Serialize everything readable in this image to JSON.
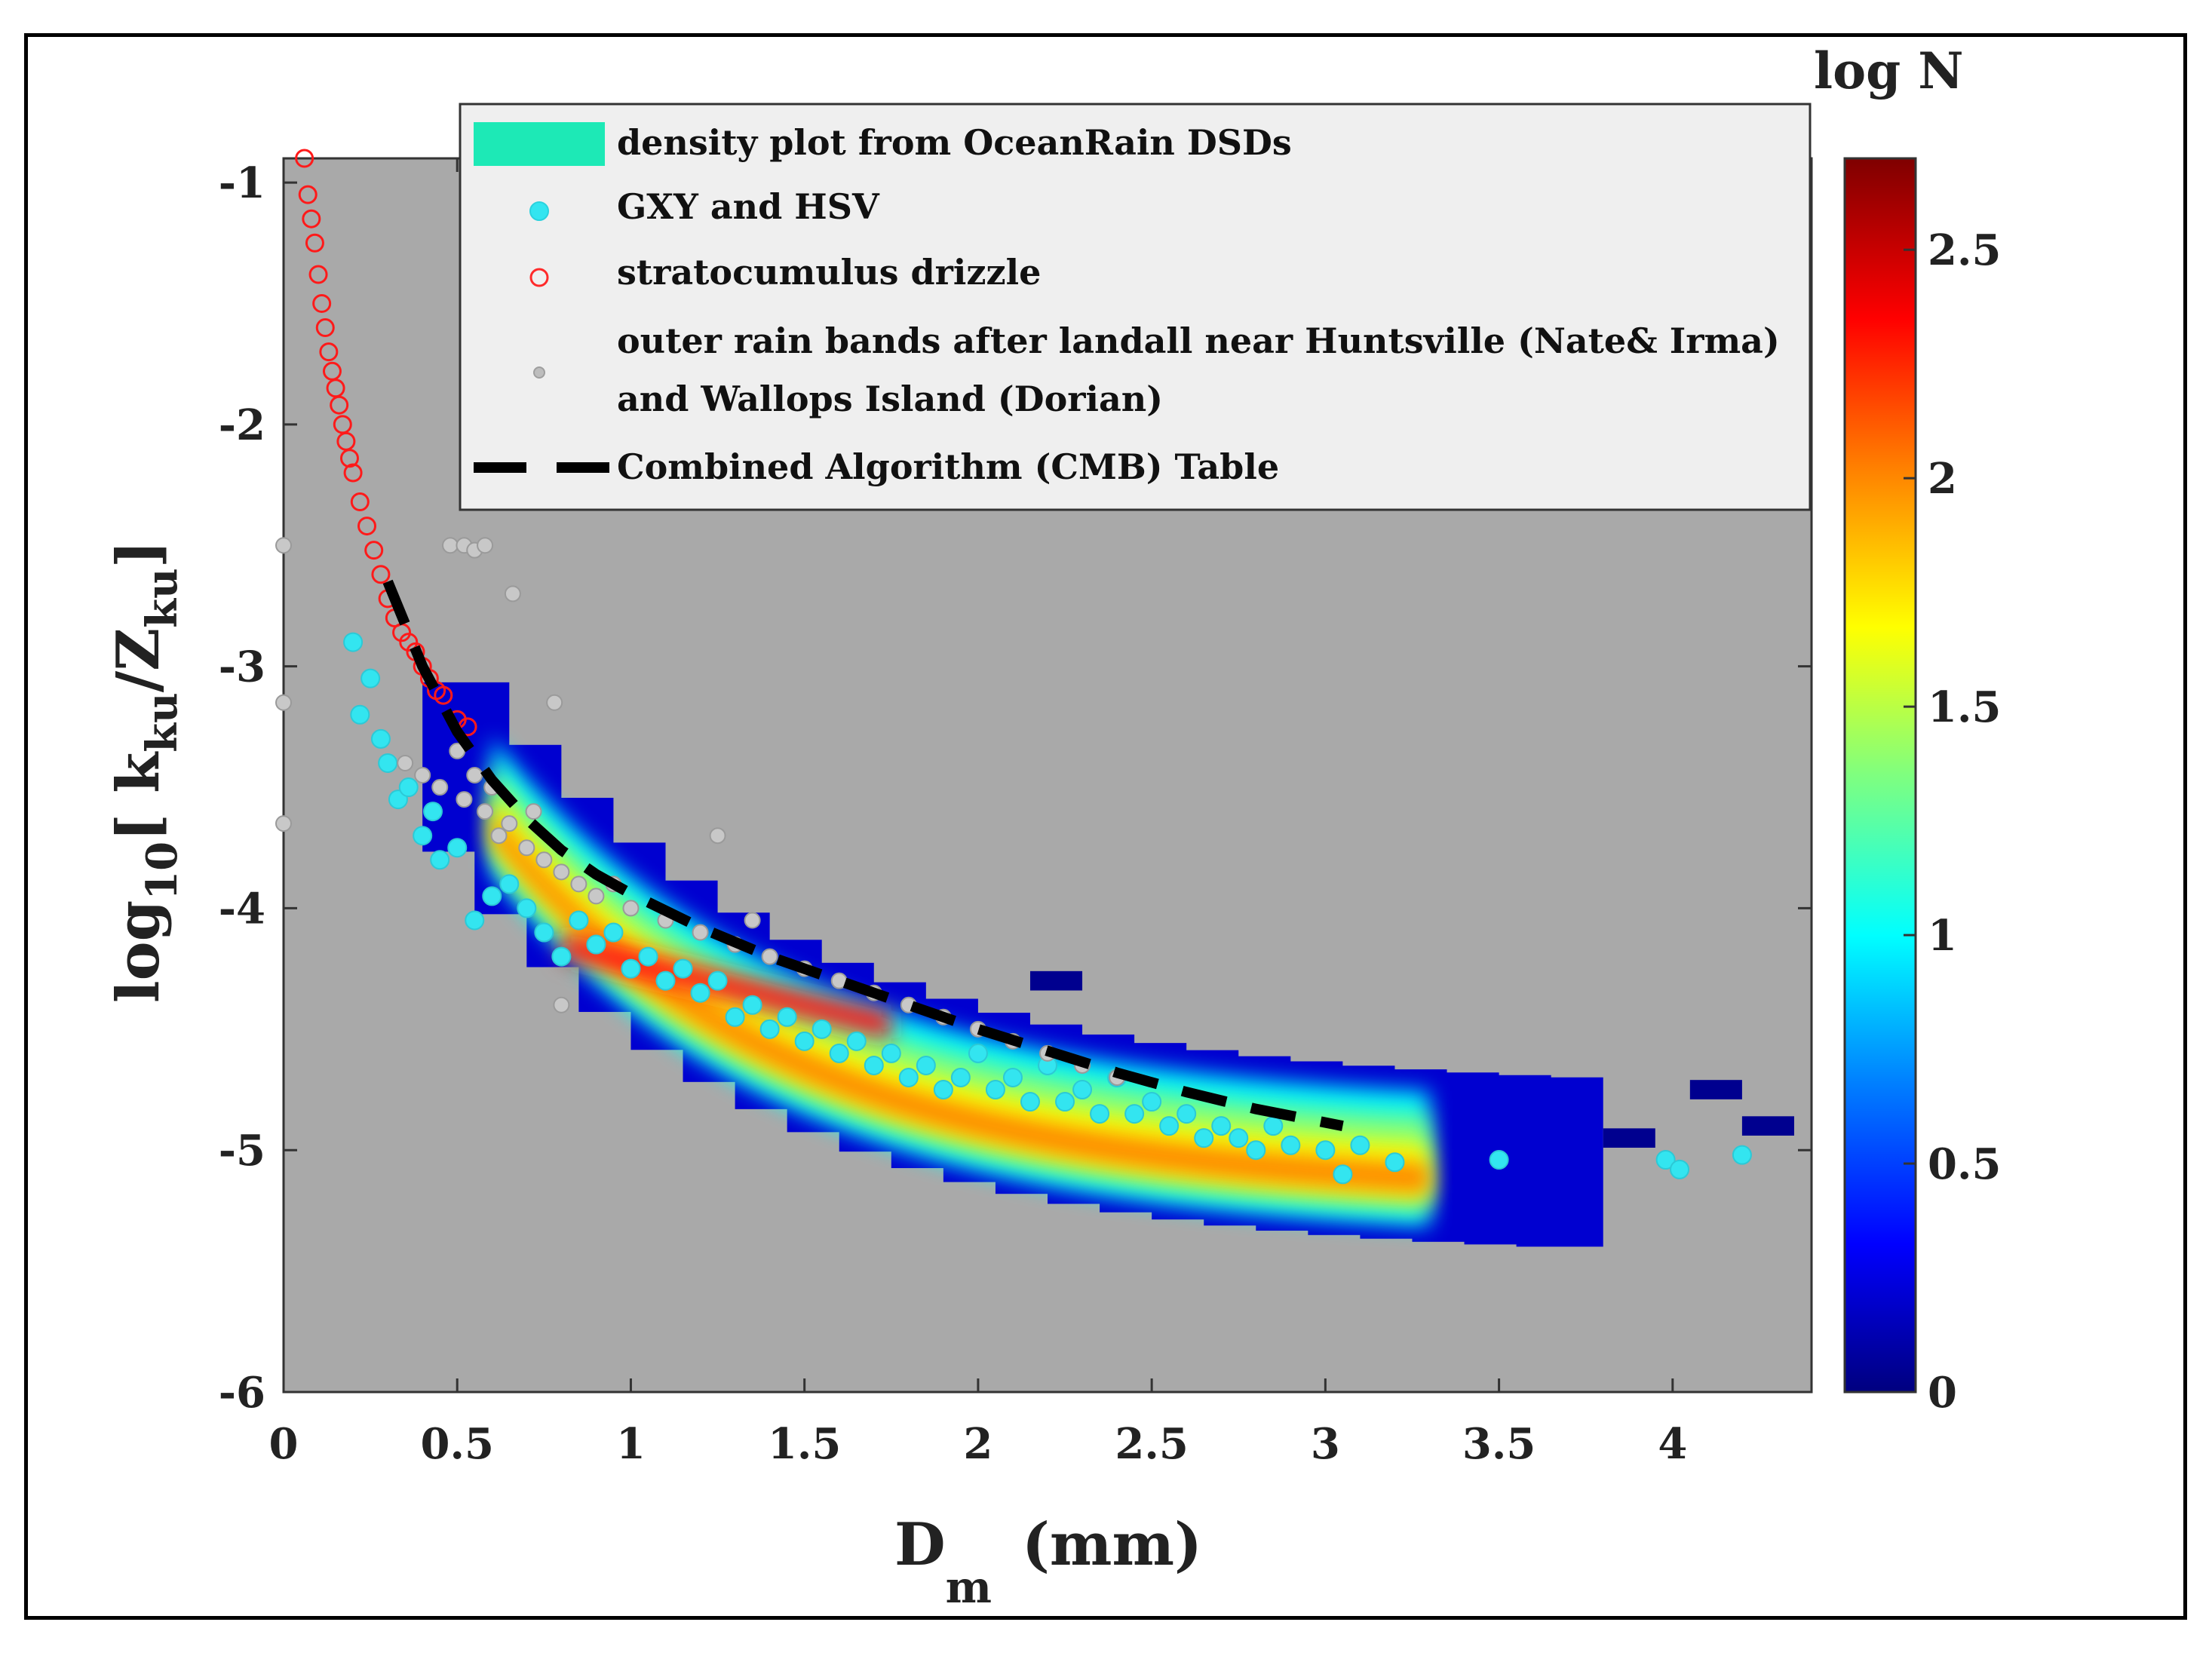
{
  "chart_data": {
    "type": "scatter",
    "xlabel": {
      "main": "D",
      "sub": "m",
      "unit": "(mm)"
    },
    "ylabel": {
      "prefix": "log",
      "base": "10",
      "bracket_open": "[ k",
      "sub1": "ku",
      "slash": "/Z",
      "sub2": "ku",
      "bracket_close": "]"
    },
    "xlim": [
      0,
      4.4
    ],
    "ylim": [
      -6,
      -0.9
    ],
    "xticks": [
      0,
      0.5,
      1,
      1.5,
      2,
      2.5,
      3,
      3.5,
      4
    ],
    "xtick_labels": [
      "0",
      "0.5",
      "1",
      "1.5",
      "2",
      "2.5",
      "3",
      "3.5",
      "4"
    ],
    "yticks": [
      -6,
      -5,
      -4,
      -3,
      -2,
      -1
    ],
    "ytick_labels": [
      "-6",
      "-5",
      "-4",
      "-3",
      "-2",
      "-1"
    ],
    "colorbar": {
      "title": "log N",
      "range": [
        0,
        2.7
      ],
      "ticks": [
        0,
        0.5,
        1,
        1.5,
        2,
        2.5
      ],
      "tick_labels": [
        "0",
        "0.5",
        "1",
        "1.5",
        "2",
        "2.5"
      ],
      "colors": [
        "#00007f",
        "#0000ff",
        "#007fff",
        "#00ffff",
        "#7fff7f",
        "#ffff00",
        "#ff7f00",
        "#ff0000",
        "#7f0000"
      ]
    },
    "legend": [
      {
        "label": "density plot from OceanRain DSDs",
        "marker": "patch",
        "color": "#1de9b6"
      },
      {
        "label": " GXY and HSV",
        "marker": "filled-circle",
        "color": "#33e5f0"
      },
      {
        "label": "stratocumulus drizzle",
        "marker": "open-circle",
        "color": "#ff2a2a"
      },
      {
        "label": "outer rain bands after landall near Huntsville (Nate& Irma)",
        "label2": " and Wallops Island (Dorian)",
        "marker": "small-dot",
        "color": "#bdbdbd"
      },
      {
        "label": "Combined Algorithm (CMB) Table",
        "marker": "dashed-line",
        "color": "#000000"
      }
    ],
    "series": [
      {
        "name": "Combined Algorithm (CMB) Table",
        "x": [
          0.3,
          0.4,
          0.5,
          0.6,
          0.7,
          0.8,
          0.9,
          1.0,
          1.2,
          1.4,
          1.6,
          1.8,
          2.0,
          2.2,
          2.4,
          2.6,
          2.8,
          3.05
        ],
        "y": [
          -2.65,
          -3.0,
          -3.27,
          -3.47,
          -3.63,
          -3.76,
          -3.86,
          -3.94,
          -4.08,
          -4.2,
          -4.3,
          -4.4,
          -4.5,
          -4.59,
          -4.68,
          -4.76,
          -4.83,
          -4.9
        ]
      },
      {
        "name": "stratocumulus drizzle",
        "x": [
          0.06,
          0.07,
          0.08,
          0.09,
          0.1,
          0.11,
          0.12,
          0.13,
          0.14,
          0.15,
          0.16,
          0.17,
          0.18,
          0.19,
          0.2,
          0.22,
          0.24,
          0.26,
          0.28,
          0.3,
          0.32,
          0.34,
          0.36,
          0.38,
          0.4,
          0.42,
          0.44,
          0.46,
          0.5,
          0.53
        ],
        "y": [
          -0.9,
          -1.05,
          -1.15,
          -1.25,
          -1.38,
          -1.5,
          -1.6,
          -1.7,
          -1.78,
          -1.85,
          -1.92,
          -2.0,
          -2.07,
          -2.14,
          -2.2,
          -2.32,
          -2.42,
          -2.52,
          -2.62,
          -2.72,
          -2.8,
          -2.86,
          -2.9,
          -2.94,
          -3.0,
          -3.05,
          -3.1,
          -3.12,
          -3.22,
          -3.25
        ]
      },
      {
        "name": "GXY and HSV",
        "x": [
          0.2,
          0.22,
          0.25,
          0.28,
          0.3,
          0.33,
          0.36,
          0.4,
          0.43,
          0.45,
          0.5,
          0.55,
          0.6,
          0.65,
          0.7,
          0.75,
          0.8,
          0.85,
          0.9,
          0.95,
          1.0,
          1.05,
          1.1,
          1.15,
          1.2,
          1.25,
          1.3,
          1.35,
          1.4,
          1.45,
          1.5,
          1.55,
          1.6,
          1.65,
          1.7,
          1.75,
          1.8,
          1.85,
          1.9,
          1.95,
          2.0,
          2.05,
          2.1,
          2.15,
          2.2,
          2.25,
          2.3,
          2.35,
          2.4,
          2.45,
          2.5,
          2.55,
          2.6,
          2.65,
          2.7,
          2.75,
          2.8,
          2.85,
          2.9,
          3.0,
          3.05,
          3.1,
          3.2,
          3.5,
          3.98,
          4.02,
          4.2
        ],
        "y": [
          -2.9,
          -3.2,
          -3.05,
          -3.3,
          -3.4,
          -3.55,
          -3.5,
          -3.7,
          -3.6,
          -3.8,
          -3.75,
          -4.05,
          -3.95,
          -3.9,
          -4.0,
          -4.1,
          -4.2,
          -4.05,
          -4.15,
          -4.1,
          -4.25,
          -4.2,
          -4.3,
          -4.25,
          -4.35,
          -4.3,
          -4.45,
          -4.4,
          -4.5,
          -4.45,
          -4.55,
          -4.5,
          -4.6,
          -4.55,
          -4.65,
          -4.6,
          -4.7,
          -4.65,
          -4.75,
          -4.7,
          -4.6,
          -4.75,
          -4.7,
          -4.8,
          -4.65,
          -4.8,
          -4.75,
          -4.85,
          -4.7,
          -4.85,
          -4.8,
          -4.9,
          -4.85,
          -4.95,
          -4.9,
          -4.95,
          -5.0,
          -4.9,
          -4.98,
          -5.0,
          -5.1,
          -4.98,
          -5.05,
          -5.04,
          -5.04,
          -5.08,
          -5.02
        ]
      },
      {
        "name": "outer rain bands",
        "x": [
          0.0,
          0.0,
          0.0,
          0.35,
          0.4,
          0.45,
          0.5,
          0.52,
          0.55,
          0.58,
          0.6,
          0.62,
          0.65,
          0.7,
          0.72,
          0.75,
          0.8,
          0.85,
          0.9,
          0.95,
          1.0,
          1.1,
          1.2,
          1.3,
          1.35,
          1.4,
          1.5,
          1.6,
          1.7,
          1.8,
          1.9,
          2.0,
          2.1,
          2.2,
          2.3,
          2.4,
          0.48,
          0.52,
          0.55,
          0.58,
          0.66,
          0.78,
          1.25,
          0.8
        ],
        "y": [
          -2.5,
          -3.15,
          -3.65,
          -3.4,
          -3.45,
          -3.5,
          -3.35,
          -3.55,
          -3.45,
          -3.6,
          -3.5,
          -3.7,
          -3.65,
          -3.75,
          -3.6,
          -3.8,
          -3.85,
          -3.9,
          -3.95,
          -3.9,
          -4.0,
          -4.05,
          -4.1,
          -4.15,
          -4.05,
          -4.2,
          -4.25,
          -4.3,
          -4.35,
          -4.4,
          -4.45,
          -4.5,
          -4.55,
          -4.6,
          -4.65,
          -4.7,
          -2.5,
          -2.5,
          -2.52,
          -2.5,
          -2.7,
          -3.15,
          -3.7,
          -4.4
        ]
      }
    ]
  }
}
